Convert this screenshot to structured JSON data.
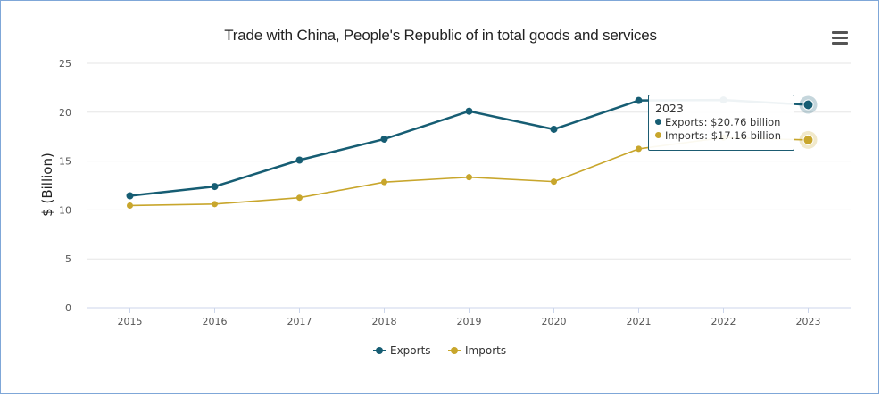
{
  "chart_data": {
    "type": "line",
    "title": "Trade with China, People's Republic of in total goods and services",
    "xlabel": "",
    "ylabel": "$ (Billion)",
    "ylim": [
      0,
      25
    ],
    "yticks": [
      "0",
      "5",
      "10",
      "15",
      "20",
      "25"
    ],
    "categories": [
      "2015",
      "2016",
      "2017",
      "2018",
      "2019",
      "2020",
      "2021",
      "2022",
      "2023"
    ],
    "grid": true,
    "legend_position": "bottom-center",
    "series": [
      {
        "name": "Exports",
        "color": "#165d73",
        "values": [
          11.45,
          12.4,
          15.1,
          17.25,
          20.1,
          18.25,
          21.2,
          21.25,
          20.76
        ]
      },
      {
        "name": "Imports",
        "color": "#c8a62c",
        "values": [
          10.45,
          10.6,
          11.25,
          12.85,
          13.35,
          12.9,
          16.25,
          17.4,
          17.16
        ]
      }
    ],
    "tooltip": {
      "year": "2023",
      "exports_text": "Exports: $20.76 billion",
      "imports_text": "Imports: $17.16 billion"
    }
  },
  "ui": {
    "menu_icon": "hamburger-menu-icon"
  }
}
